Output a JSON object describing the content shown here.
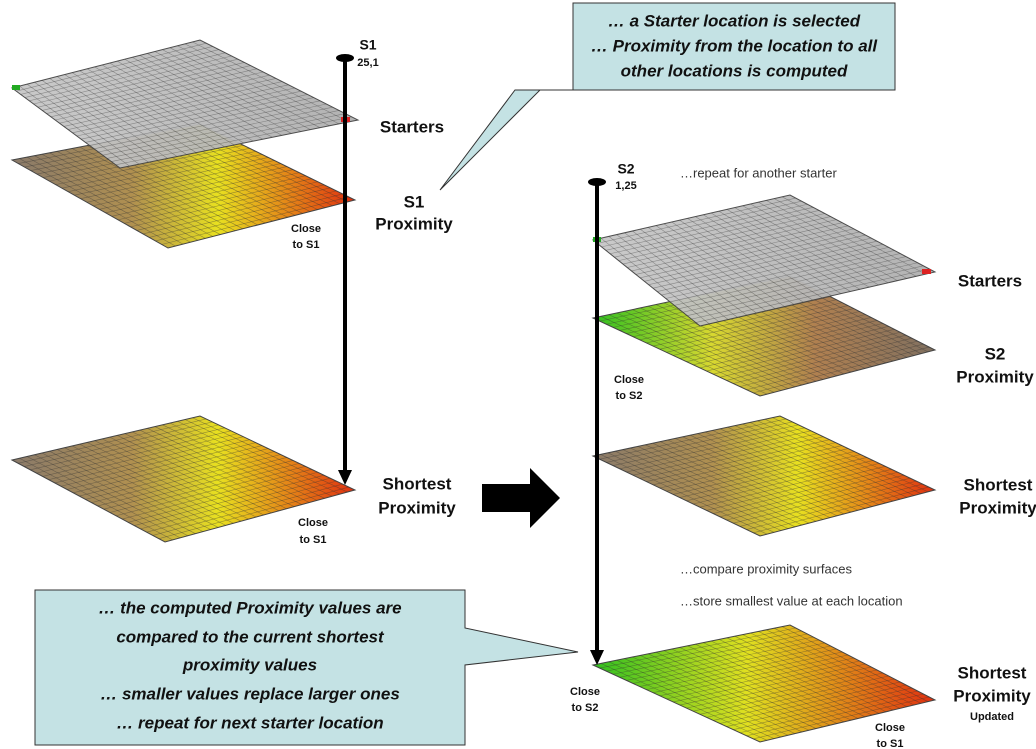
{
  "left": {
    "s1_marker": [
      "S1",
      "25,1"
    ],
    "starters": "Starters",
    "s1_proximity": [
      "S1",
      "Proximity"
    ],
    "close_s1_a": [
      "Close",
      "to S1"
    ],
    "shortest": [
      "Shortest",
      "Proximity"
    ],
    "close_s1_b": [
      "Close",
      "to S1"
    ]
  },
  "top_callout": [
    "… a Starter location is selected",
    "… Proximity from the location to all",
    "other locations is computed"
  ],
  "right": {
    "s2_marker": [
      "S2",
      "1,25"
    ],
    "repeat_note": "…repeat for another starter",
    "starters": "Starters",
    "s2_proximity": [
      "S2",
      "Proximity"
    ],
    "close_s2_a": [
      "Close",
      "to S2"
    ],
    "shortest": [
      "Shortest",
      "Proximity"
    ],
    "compare_note": "…compare proximity surfaces",
    "store_note": "…store smallest value at each location",
    "updated": [
      "Shortest",
      "Proximity",
      "Updated"
    ],
    "close_s2_b": [
      "Close",
      "to S2"
    ],
    "close_s1": [
      "Close",
      "to S1"
    ]
  },
  "bottom_callout": [
    "… the computed Proximity values are",
    "compared to the current shortest",
    "proximity values",
    "… smaller values replace larger ones",
    "… repeat for next starter location"
  ]
}
